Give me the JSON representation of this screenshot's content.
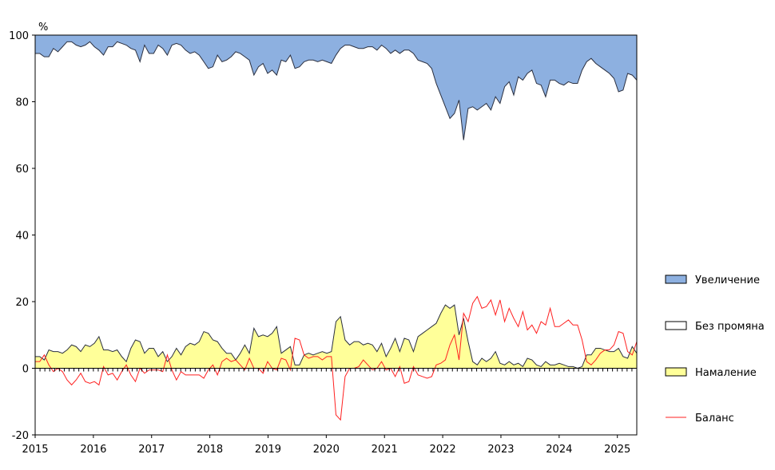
{
  "chart_data": {
    "type": "area",
    "ylabel": "%",
    "ylim": [
      -20,
      100
    ],
    "y_ticks": [
      "100",
      "80",
      "60",
      "40",
      "20",
      "0",
      "-20"
    ],
    "x_ticks": [
      "2015",
      "2016",
      "2017",
      "2018",
      "2019",
      "2020",
      "2021",
      "2022",
      "2023",
      "2024",
      "2025"
    ],
    "x_start": "2015-01",
    "x_end": "2025-05",
    "legend_position": "right",
    "series": [
      {
        "name": "Увеличение",
        "color": "#8db0e0",
        "values": [
          5.5,
          5.5,
          6.5,
          6.5,
          4,
          5,
          3.5,
          2,
          2,
          3,
          3.5,
          3,
          2,
          3.5,
          4.5,
          6,
          3.5,
          3.5,
          2,
          2.5,
          3,
          4,
          4.5,
          8,
          3,
          5.5,
          5.5,
          3,
          4,
          6,
          3,
          2.5,
          3,
          4.5,
          5.5,
          5,
          6,
          8,
          10,
          9.5,
          6,
          8,
          7.5,
          6.5,
          5,
          5.5,
          6.5,
          7.5,
          12,
          9.5,
          8.5,
          11.5,
          10.5,
          12,
          7.5,
          8,
          6,
          10,
          9.5,
          8,
          7.5,
          7.5,
          8,
          7.5,
          8,
          8.5,
          6,
          4,
          3,
          3,
          3.5,
          4,
          4,
          3.5,
          3.5,
          4.5,
          3,
          4,
          5.5,
          4.5,
          5.5,
          4.5,
          4.5,
          5.5,
          7.5,
          8,
          8.5,
          10,
          14.5,
          18,
          21.5,
          25,
          23.5,
          19.5,
          31.5,
          22,
          21.5,
          22.5,
          21.5,
          20.5,
          22.5,
          18.5,
          20.5,
          15.5,
          14,
          18,
          12.5,
          13.5,
          11.5,
          10.5,
          14.5,
          15,
          18.5,
          13.5,
          13.5,
          14.5,
          15,
          14,
          14.5,
          14.5,
          10.5,
          8,
          7,
          8.5,
          9.5,
          10.5,
          11.5,
          13,
          17,
          16.5,
          11.5,
          12,
          13.5
        ]
      },
      {
        "name": "Без промяна",
        "color": "#ffffff",
        "values": [
          91,
          91,
          91,
          88,
          91,
          90,
          92,
          92.5,
          91,
          90.5,
          91.5,
          90,
          91.5,
          89,
          86,
          88.5,
          91,
          91.5,
          92.5,
          94,
          94.5,
          90,
          87,
          84,
          92.5,
          88.5,
          88.5,
          93.5,
          91,
          92,
          93.5,
          91.5,
          93,
          89,
          87,
          88,
          86,
          81,
          79.5,
          82,
          86,
          86,
          88,
          89,
          92.5,
          90,
          86.5,
          88,
          76,
          81,
          81.5,
          79,
          79,
          75.5,
          88,
          86.5,
          87.5,
          89,
          89.5,
          88,
          92,
          92.5,
          91.5,
          91.5,
          91.5,
          90.5,
          80,
          80.5,
          88.5,
          90,
          88.5,
          88,
          89,
          89,
          89.5,
          90.5,
          89.5,
          92.5,
          88.5,
          86.5,
          89.5,
          86.5,
          87,
          89.5,
          83,
          81.5,
          80,
          77.5,
          72,
          65.5,
          59.5,
          57,
          57.5,
          70.5,
          53.5,
          70,
          76.5,
          74.5,
          75.5,
          77.5,
          73.5,
          76.5,
          78,
          78.5,
          82,
          79.5,
          71,
          74.5,
          81,
          76,
          85.5,
          85.5,
          74.5,
          66,
          70,
          76.5,
          80,
          82.5,
          82,
          80.5,
          86,
          86,
          80,
          79.5,
          82,
          77.5,
          77.5,
          77
        ]
      },
      {
        "name": "Намаление",
        "color": "#ffff99",
        "values": [
          3.5,
          3.5,
          2.5,
          5.5,
          5,
          5,
          4.5,
          5.5,
          7,
          6.5,
          5,
          7,
          6.5,
          7.5,
          9.5,
          5.5,
          5.5,
          5,
          5.5,
          3.5,
          2,
          6,
          8.5,
          8,
          4.5,
          6,
          6,
          3.5,
          5,
          2,
          3.5,
          6,
          4,
          6.5,
          7.5,
          7,
          8,
          11,
          10.5,
          8.5,
          8,
          6,
          4.5,
          4.5,
          2.5,
          4.5,
          7,
          4.5,
          12,
          9.5,
          10,
          9.5,
          10.5,
          12.5,
          4.5,
          5.5,
          6.5,
          1,
          1,
          4,
          4.5,
          4,
          4.5,
          5,
          4.5,
          5,
          14,
          15.5,
          8.5,
          7,
          8,
          8,
          7,
          7.5,
          7,
          5,
          7.5,
          3.5,
          6,
          9,
          5,
          9,
          8.5,
          5,
          9.5,
          10.5,
          11.5,
          12.5,
          13.5,
          16.5,
          19,
          18,
          19,
          10,
          15,
          8,
          2,
          1,
          3,
          2,
          3,
          5,
          1.5,
          1,
          2,
          1,
          1.5,
          0.5,
          3,
          2.5,
          1,
          0.5,
          2,
          1,
          1,
          1.5,
          1,
          0.5,
          0.5,
          0,
          0.5,
          4,
          4,
          6,
          6,
          5.5,
          5,
          5,
          6,
          3.5,
          3,
          6.5,
          4.5
        ]
      },
      {
        "name": "Баланс",
        "color": "#ff2020",
        "values": [
          2,
          2,
          4,
          1,
          -1,
          0,
          -1,
          -3.5,
          -5,
          -3.5,
          -1.5,
          -4,
          -4.5,
          -4,
          -5,
          0.5,
          -2,
          -1.5,
          -3.5,
          -1,
          1,
          -2,
          -4,
          0,
          -1.5,
          -0.5,
          -0.5,
          -0.5,
          -1,
          4,
          -0.5,
          -3.5,
          -1,
          -2,
          -2,
          -2,
          -2,
          -3,
          -0.5,
          1,
          -2,
          2,
          3,
          2,
          2.5,
          1,
          -0.5,
          3,
          0,
          0,
          -1.5,
          2,
          0,
          -0.5,
          3,
          2.5,
          -0.5,
          9,
          8.5,
          4,
          3,
          3.5,
          3.5,
          2.5,
          3.5,
          3.5,
          -14,
          -15.5,
          -2.5,
          0,
          0,
          0.5,
          2.5,
          1,
          -0.5,
          0,
          2,
          -0.5,
          0,
          -2.5,
          0.5,
          -4.5,
          -4,
          0.5,
          -2,
          -2.5,
          -3,
          -2.5,
          1,
          1.5,
          2.5,
          7,
          10,
          2.5,
          16.5,
          14,
          19.5,
          21.5,
          18,
          18.5,
          20.5,
          16,
          20.5,
          14,
          18,
          15,
          12.5,
          17,
          11.5,
          13,
          10.5,
          14,
          13,
          18,
          12.5,
          12.5,
          13.5,
          14.5,
          13,
          13,
          8.5,
          2,
          1,
          2.5,
          4.5,
          5.5,
          5.5,
          7,
          11,
          10.5,
          5,
          4,
          8
        ]
      }
    ]
  }
}
